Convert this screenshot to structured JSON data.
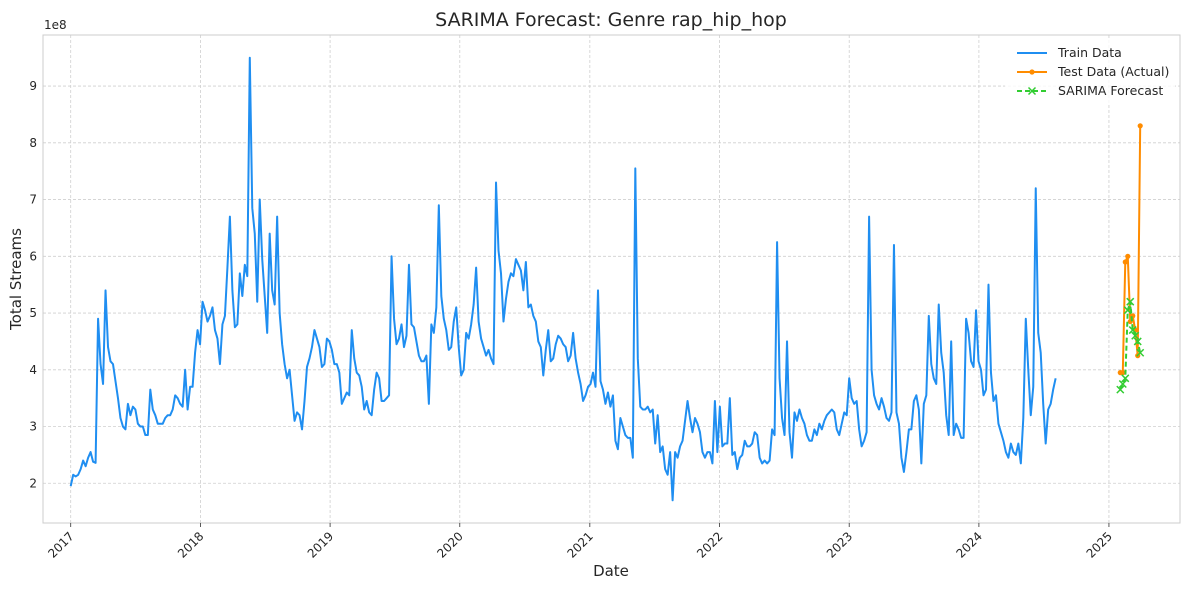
{
  "chart_data": {
    "type": "line",
    "title": "SARIMA Forecast: Genre rap_hip_hop",
    "xlabel": "Date",
    "ylabel": "Total Streams",
    "y_offset_label": "1e8",
    "xlim": [
      "2016-10-15",
      "2025-07-20"
    ],
    "ylim": [
      130000000,
      990000000
    ],
    "x_ticks": [
      "2017-01-01",
      "2018-01-01",
      "2019-01-01",
      "2020-01-01",
      "2021-01-01",
      "2022-01-01",
      "2023-01-01",
      "2024-01-01",
      "2025-01-01"
    ],
    "x_tick_labels": [
      "2017",
      "2018",
      "2019",
      "2020",
      "2021",
      "2022",
      "2023",
      "2024",
      "2025"
    ],
    "y_ticks": [
      200000000,
      300000000,
      400000000,
      500000000,
      600000000,
      700000000,
      800000000,
      900000000
    ],
    "y_tick_labels": [
      "2",
      "3",
      "4",
      "5",
      "6",
      "7",
      "8",
      "9"
    ],
    "grid": true,
    "legend_position": "top-right",
    "series": [
      {
        "name": "Train Data",
        "color": "#1f8ef1",
        "style": "solid",
        "marker": "none",
        "x_start": "2017-01-01",
        "step_days": 7,
        "values": [
          195000000.0,
          215000000.0,
          212000000.0,
          215000000.0,
          225000000.0,
          240000000.0,
          230000000.0,
          245000000.0,
          255000000.0,
          238000000.0,
          236000000.0,
          490000000.0,
          410000000.0,
          375000000.0,
          540000000.0,
          440000000.0,
          415000000.0,
          410000000.0,
          380000000.0,
          350000000.0,
          315000000.0,
          300000000.0,
          295000000.0,
          340000000.0,
          320000000.0,
          335000000.0,
          330000000.0,
          305000000.0,
          300000000.0,
          300000000.0,
          285000000.0,
          285000000.0,
          365000000.0,
          330000000.0,
          320000000.0,
          305000000.0,
          305000000.0,
          305000000.0,
          315000000.0,
          320000000.0,
          320000000.0,
          330000000.0,
          355000000.0,
          350000000.0,
          340000000.0,
          335000000.0,
          400000000.0,
          330000000.0,
          370000000.0,
          370000000.0,
          430000000.0,
          470000000.0,
          445000000.0,
          520000000.0,
          505000000.0,
          485000000.0,
          495000000.0,
          510000000.0,
          470000000.0,
          455000000.0,
          410000000.0,
          480000000.0,
          495000000.0,
          580000000.0,
          670000000.0,
          540000000.0,
          475000000.0,
          480000000.0,
          570000000.0,
          530000000.0,
          585000000.0,
          565000000.0,
          950000000.0,
          685000000.0,
          640000000.0,
          520000000.0,
          700000000.0,
          595000000.0,
          530000000.0,
          465000000.0,
          640000000.0,
          540000000.0,
          515000000.0,
          670000000.0,
          500000000.0,
          445000000.0,
          410000000.0,
          385000000.0,
          400000000.0,
          355000000.0,
          310000000.0,
          325000000.0,
          320000000.0,
          295000000.0,
          345000000.0,
          405000000.0,
          420000000.0,
          440000000.0,
          470000000.0,
          455000000.0,
          440000000.0,
          405000000.0,
          410000000.0,
          455000000.0,
          450000000.0,
          435000000.0,
          410000000.0,
          410000000.0,
          395000000.0,
          340000000.0,
          350000000.0,
          360000000.0,
          355000000.0,
          470000000.0,
          420000000.0,
          395000000.0,
          390000000.0,
          370000000.0,
          330000000.0,
          345000000.0,
          325000000.0,
          320000000.0,
          365000000.0,
          395000000.0,
          385000000.0,
          345000000.0,
          345000000.0,
          350000000.0,
          355000000.0,
          600000000.0,
          490000000.0,
          445000000.0,
          455000000.0,
          480000000.0,
          440000000.0,
          460000000.0,
          585000000.0,
          480000000.0,
          475000000.0,
          450000000.0,
          425000000.0,
          415000000.0,
          415000000.0,
          425000000.0,
          340000000.0,
          480000000.0,
          465000000.0,
          510000000.0,
          690000000.0,
          530000000.0,
          490000000.0,
          470000000.0,
          435000000.0,
          440000000.0,
          485000000.0,
          510000000.0,
          440000000.0,
          390000000.0,
          400000000.0,
          465000000.0,
          455000000.0,
          480000000.0,
          515000000.0,
          580000000.0,
          485000000.0,
          455000000.0,
          440000000.0,
          425000000.0,
          435000000.0,
          420000000.0,
          410000000.0,
          730000000.0,
          610000000.0,
          570000000.0,
          485000000.0,
          525000000.0,
          555000000.0,
          570000000.0,
          565000000.0,
          595000000.0,
          585000000.0,
          575000000.0,
          540000000.0,
          590000000.0,
          510000000.0,
          515000000.0,
          495000000.0,
          485000000.0,
          450000000.0,
          440000000.0,
          390000000.0,
          435000000.0,
          470000000.0,
          415000000.0,
          420000000.0,
          445000000.0,
          460000000.0,
          455000000.0,
          445000000.0,
          440000000.0,
          415000000.0,
          425000000.0,
          465000000.0,
          420000000.0,
          395000000.0,
          375000000.0,
          345000000.0,
          355000000.0,
          370000000.0,
          375000000.0,
          395000000.0,
          370000000.0,
          540000000.0,
          380000000.0,
          365000000.0,
          340000000.0,
          360000000.0,
          335000000.0,
          355000000.0,
          275000000.0,
          260000000.0,
          315000000.0,
          300000000.0,
          285000000.0,
          280000000.0,
          280000000.0,
          245000000.0,
          755000000.0,
          420000000.0,
          335000000.0,
          330000000.0,
          330000000.0,
          335000000.0,
          325000000.0,
          330000000.0,
          270000000.0,
          320000000.0,
          255000000.0,
          265000000.0,
          225000000.0,
          215000000.0,
          255000000.0,
          170000000.0,
          255000000.0,
          245000000.0,
          265000000.0,
          275000000.0,
          310000000.0,
          345000000.0,
          315000000.0,
          290000000.0,
          315000000.0,
          305000000.0,
          290000000.0,
          255000000.0,
          245000000.0,
          255000000.0,
          255000000.0,
          235000000.0,
          345000000.0,
          255000000.0,
          335000000.0,
          265000000.0,
          270000000.0,
          270000000.0,
          350000000.0,
          250000000.0,
          255000000.0,
          225000000.0,
          245000000.0,
          250000000.0,
          275000000.0,
          265000000.0,
          265000000.0,
          270000000.0,
          290000000.0,
          285000000.0,
          245000000.0,
          235000000.0,
          240000000.0,
          235000000.0,
          240000000.0,
          295000000.0,
          285000000.0,
          625000000.0,
          385000000.0,
          315000000.0,
          285000000.0,
          450000000.0,
          290000000.0,
          245000000.0,
          325000000.0,
          310000000.0,
          330000000.0,
          315000000.0,
          305000000.0,
          285000000.0,
          275000000.0,
          275000000.0,
          295000000.0,
          285000000.0,
          305000000.0,
          295000000.0,
          310000000.0,
          320000000.0,
          325000000.0,
          330000000.0,
          325000000.0,
          295000000.0,
          285000000.0,
          305000000.0,
          325000000.0,
          320000000.0,
          385000000.0,
          350000000.0,
          340000000.0,
          345000000.0,
          295000000.0,
          265000000.0,
          275000000.0,
          290000000.0,
          670000000.0,
          400000000.0,
          355000000.0,
          340000000.0,
          330000000.0,
          350000000.0,
          335000000.0,
          315000000.0,
          310000000.0,
          325000000.0,
          620000000.0,
          325000000.0,
          305000000.0,
          245000000.0,
          220000000.0,
          255000000.0,
          295000000.0,
          295000000.0,
          345000000.0,
          355000000.0,
          330000000.0,
          235000000.0,
          340000000.0,
          355000000.0,
          495000000.0,
          410000000.0,
          385000000.0,
          375000000.0,
          515000000.0,
          430000000.0,
          395000000.0,
          320000000.0,
          285000000.0,
          450000000.0,
          285000000.0,
          305000000.0,
          295000000.0,
          280000000.0,
          280000000.0,
          490000000.0,
          465000000.0,
          415000000.0,
          405000000.0,
          505000000.0,
          415000000.0,
          400000000.0,
          355000000.0,
          365000000.0,
          550000000.0,
          395000000.0,
          345000000.0,
          355000000.0,
          305000000.0,
          290000000.0,
          275000000.0,
          255000000.0,
          245000000.0,
          270000000.0,
          255000000.0,
          250000000.0,
          270000000.0,
          235000000.0,
          315000000.0,
          490000000.0,
          400000000.0,
          320000000.0,
          370000000.0,
          720000000.0,
          465000000.0,
          430000000.0,
          340000000.0,
          270000000.0,
          330000000.0,
          340000000.0,
          365000000.0,
          385000000.0
        ]
      },
      {
        "name": "Test Data (Actual)",
        "color": "#ff8c00",
        "style": "solid",
        "marker": "dot",
        "x": [
          "2025-02-02",
          "2025-02-09",
          "2025-02-16",
          "2025-02-23",
          "2025-03-02",
          "2025-03-09",
          "2025-03-16",
          "2025-03-23",
          "2025-03-30"
        ],
        "values": [
          395000000.0,
          395000000.0,
          590000000.0,
          600000000.0,
          485000000.0,
          495000000.0,
          470000000.0,
          425000000.0,
          830000000.0
        ]
      },
      {
        "name": "SARIMA Forecast",
        "color": "#32cd32",
        "style": "dashed",
        "marker": "x",
        "x": [
          "2025-02-02",
          "2025-02-09",
          "2025-02-16",
          "2025-02-23",
          "2025-03-02",
          "2025-03-09",
          "2025-03-16",
          "2025-03-23",
          "2025-03-30"
        ],
        "values": [
          365000000.0,
          375000000.0,
          385000000.0,
          505000000.0,
          520000000.0,
          470000000.0,
          460000000.0,
          450000000.0,
          430000000.0
        ]
      }
    ]
  }
}
